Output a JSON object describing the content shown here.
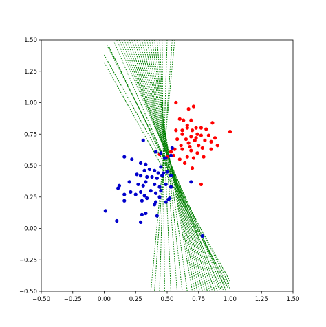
{
  "chart_data": {
    "type": "scatter",
    "title": "",
    "xlabel": "",
    "ylabel": "",
    "xlim": [
      -0.5,
      1.5
    ],
    "ylim": [
      -0.5,
      1.5
    ],
    "grid": false,
    "legend": "none",
    "xticks": [
      "−0.50",
      "−0.25",
      "0.00",
      "0.25",
      "0.50",
      "0.75",
      "1.00",
      "1.25",
      "1.50"
    ],
    "yticks": [
      "−0.50",
      "−0.25",
      "0.00",
      "0.25",
      "0.50",
      "0.75",
      "1.00",
      "1.25",
      "1.50"
    ],
    "xtick_values": [
      -0.5,
      -0.25,
      0,
      0.25,
      0.5,
      0.75,
      1.0,
      1.25,
      1.5
    ],
    "ytick_values": [
      -0.5,
      -0.25,
      0,
      0.25,
      0.5,
      0.75,
      1.0,
      1.25,
      1.5
    ],
    "series": [
      {
        "kind": "points",
        "color": "#ff0000",
        "points": [
          [
            0.57,
            1.0
          ],
          [
            0.6,
            0.87
          ],
          [
            0.67,
            0.95
          ],
          [
            0.71,
            0.97
          ],
          [
            0.63,
            0.86
          ],
          [
            0.69,
            0.86
          ],
          [
            0.66,
            0.82
          ],
          [
            0.57,
            0.78
          ],
          [
            0.62,
            0.75
          ],
          [
            0.66,
            0.8
          ],
          [
            0.7,
            0.78
          ],
          [
            0.73,
            0.8
          ],
          [
            0.77,
            0.8
          ],
          [
            0.74,
            0.75
          ],
          [
            0.81,
            0.79
          ],
          [
            0.86,
            0.84
          ],
          [
            0.83,
            0.74
          ],
          [
            0.77,
            0.74
          ],
          [
            0.69,
            0.73
          ],
          [
            0.65,
            0.71
          ],
          [
            0.58,
            0.71
          ],
          [
            0.61,
            0.66
          ],
          [
            0.67,
            0.68
          ],
          [
            0.72,
            0.7
          ],
          [
            0.8,
            0.7
          ],
          [
            0.88,
            0.72
          ],
          [
            0.85,
            0.69
          ],
          [
            0.78,
            0.64
          ],
          [
            0.74,
            0.6
          ],
          [
            0.69,
            0.62
          ],
          [
            0.62,
            0.63
          ],
          [
            0.56,
            0.63
          ],
          [
            0.53,
            0.61
          ],
          [
            0.66,
            0.57
          ],
          [
            0.71,
            0.56
          ],
          [
            0.79,
            0.57
          ],
          [
            0.85,
            0.63
          ],
          [
            0.64,
            0.52
          ],
          [
            0.7,
            0.48
          ],
          [
            0.77,
            0.35
          ],
          [
            0.6,
            0.55
          ],
          [
            0.44,
            0.59
          ],
          [
            0.5,
            0.57
          ],
          [
            0.73,
            0.72
          ],
          [
            0.9,
            0.66
          ],
          [
            0.62,
            0.78
          ],
          [
            0.68,
            0.65
          ],
          [
            1.0,
            0.77
          ],
          [
            0.55,
            0.58
          ],
          [
            0.75,
            0.66
          ]
        ]
      },
      {
        "kind": "points",
        "color": "#0000cc",
        "points": [
          [
            0.31,
            0.7
          ],
          [
            0.54,
            0.64
          ],
          [
            0.16,
            0.57
          ],
          [
            0.22,
            0.55
          ],
          [
            0.29,
            0.52
          ],
          [
            0.33,
            0.51
          ],
          [
            0.41,
            0.61
          ],
          [
            0.45,
            0.6
          ],
          [
            0.49,
            0.56
          ],
          [
            0.53,
            0.58
          ],
          [
            0.32,
            0.46
          ],
          [
            0.36,
            0.47
          ],
          [
            0.4,
            0.46
          ],
          [
            0.43,
            0.44
          ],
          [
            0.47,
            0.44
          ],
          [
            0.5,
            0.45
          ],
          [
            0.42,
            0.4
          ],
          [
            0.46,
            0.42
          ],
          [
            0.53,
            0.42
          ],
          [
            0.26,
            0.43
          ],
          [
            0.29,
            0.42
          ],
          [
            0.34,
            0.41
          ],
          [
            0.38,
            0.41
          ],
          [
            0.2,
            0.37
          ],
          [
            0.27,
            0.35
          ],
          [
            0.31,
            0.34
          ],
          [
            0.33,
            0.37
          ],
          [
            0.4,
            0.35
          ],
          [
            0.44,
            0.33
          ],
          [
            0.49,
            0.35
          ],
          [
            0.53,
            0.33
          ],
          [
            0.11,
            0.32
          ],
          [
            0.12,
            0.34
          ],
          [
            0.16,
            0.27
          ],
          [
            0.21,
            0.29
          ],
          [
            0.25,
            0.27
          ],
          [
            0.29,
            0.29
          ],
          [
            0.32,
            0.26
          ],
          [
            0.37,
            0.3
          ],
          [
            0.41,
            0.28
          ],
          [
            0.45,
            0.3
          ],
          [
            0.3,
            0.22
          ],
          [
            0.34,
            0.24
          ],
          [
            0.4,
            0.19
          ],
          [
            0.41,
            0.21
          ],
          [
            0.44,
            0.25
          ],
          [
            0.49,
            0.21
          ],
          [
            0.52,
            0.24
          ],
          [
            0.01,
            0.14
          ],
          [
            0.16,
            0.22
          ],
          [
            0.3,
            0.11
          ],
          [
            0.33,
            0.12
          ],
          [
            0.42,
            0.1
          ],
          [
            0.1,
            0.06
          ],
          [
            0.29,
            0.05
          ],
          [
            0.69,
            0.37
          ],
          [
            0.78,
            -0.06
          ],
          [
            0.48,
            0.56
          ],
          [
            0.45,
            0.49
          ],
          [
            0.51,
            0.23
          ]
        ]
      },
      {
        "kind": "decision-lines",
        "color": "#008000",
        "style": "dotted",
        "lines": [
          [
            [
              0.1,
              1.5
            ],
            [
              0.97,
              -0.5
            ]
          ],
          [
            [
              0.12,
              1.5
            ],
            [
              0.95,
              -0.5
            ]
          ],
          [
            [
              0.14,
              1.5
            ],
            [
              0.92,
              -0.5
            ]
          ],
          [
            [
              0.16,
              1.5
            ],
            [
              0.9,
              -0.5
            ]
          ],
          [
            [
              0.18,
              1.5
            ],
            [
              0.88,
              -0.5
            ]
          ],
          [
            [
              0.2,
              1.5
            ],
            [
              0.86,
              -0.5
            ]
          ],
          [
            [
              0.22,
              1.5
            ],
            [
              0.84,
              -0.5
            ]
          ],
          [
            [
              0.24,
              1.5
            ],
            [
              0.82,
              -0.5
            ]
          ],
          [
            [
              0.26,
              1.5
            ],
            [
              0.8,
              -0.5
            ]
          ],
          [
            [
              0.28,
              1.5
            ],
            [
              0.78,
              -0.5
            ]
          ],
          [
            [
              0.3,
              1.5
            ],
            [
              0.76,
              -0.5
            ]
          ],
          [
            [
              0.32,
              1.5
            ],
            [
              0.74,
              -0.5
            ]
          ],
          [
            [
              0.34,
              1.5
            ],
            [
              0.72,
              -0.5
            ]
          ],
          [
            [
              0.36,
              1.5
            ],
            [
              0.7,
              -0.5
            ]
          ],
          [
            [
              0.38,
              1.5
            ],
            [
              0.66,
              -0.5
            ]
          ],
          [
            [
              0.4,
              1.5
            ],
            [
              0.62,
              -0.5
            ]
          ],
          [
            [
              0.42,
              1.5
            ],
            [
              0.58,
              -0.5
            ]
          ],
          [
            [
              0.44,
              1.5
            ],
            [
              0.53,
              -0.5
            ]
          ],
          [
            [
              0.46,
              1.5
            ],
            [
              0.48,
              -0.5
            ]
          ],
          [
            [
              0.5,
              1.5
            ],
            [
              0.44,
              -0.5
            ]
          ],
          [
            [
              0.54,
              1.5
            ],
            [
              0.4,
              -0.5
            ]
          ],
          [
            [
              0.56,
              1.5
            ],
            [
              0.37,
              -0.5
            ]
          ],
          [
            [
              0.0,
              1.32
            ],
            [
              1.0,
              -0.48
            ]
          ],
          [
            [
              0.0,
              1.38
            ],
            [
              1.0,
              -0.42
            ]
          ],
          [
            [
              0.05,
              1.42
            ],
            [
              0.96,
              -0.46
            ]
          ],
          [
            [
              0.02,
              1.46
            ],
            [
              0.99,
              -0.44
            ]
          ],
          [
            [
              0.04,
              1.44
            ],
            [
              0.98,
              -0.47
            ]
          ],
          [
            [
              0.08,
              1.48
            ],
            [
              0.93,
              -0.49
            ]
          ]
        ]
      }
    ]
  }
}
